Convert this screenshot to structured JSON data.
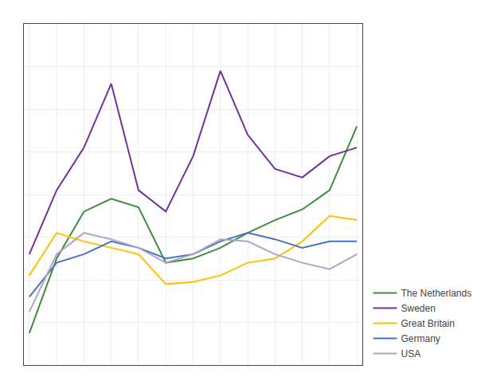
{
  "chart_data": {
    "type": "line",
    "x": [
      0,
      1,
      2,
      3,
      4,
      5,
      6,
      7,
      8,
      9,
      10,
      11,
      12
    ],
    "series": [
      {
        "name": "The Netherlands",
        "color": "#3d8c40",
        "values": [
          1.5,
          5.0,
          7.2,
          7.8,
          7.4,
          4.8,
          5.0,
          5.5,
          6.2,
          6.8,
          7.3,
          8.2,
          11.2
        ]
      },
      {
        "name": "Sweden",
        "color": "#7030a0",
        "values": [
          5.2,
          8.2,
          10.2,
          13.2,
          8.2,
          7.2,
          9.8,
          13.8,
          10.8,
          9.2,
          8.8,
          9.8,
          10.2
        ]
      },
      {
        "name": "Great Britain",
        "color": "#ffc000",
        "values": [
          4.2,
          6.2,
          5.8,
          5.5,
          5.2,
          3.8,
          3.9,
          4.2,
          4.8,
          5.0,
          5.8,
          7.0,
          6.8
        ]
      },
      {
        "name": "Germany",
        "color": "#4472c4",
        "values": [
          3.2,
          4.8,
          5.2,
          5.8,
          5.5,
          5.0,
          5.2,
          5.8,
          6.2,
          5.9,
          5.5,
          5.8,
          5.8
        ]
      },
      {
        "name": "USA",
        "color": "#b3a2c7",
        "values": [
          2.5,
          5.2,
          6.2,
          5.9,
          5.5,
          4.8,
          5.2,
          5.9,
          5.8,
          5.2,
          4.8,
          4.5,
          5.2
        ]
      }
    ],
    "xlim": [
      -0.2,
      12.2
    ],
    "xticks": [
      0,
      1,
      2,
      3,
      4,
      5,
      6,
      7,
      8,
      9,
      10,
      11,
      12
    ],
    "ylim": [
      0,
      16
    ],
    "yticks": [
      0,
      2,
      4,
      6,
      8,
      10,
      12,
      14,
      16
    ],
    "grid": true,
    "tick_labels": false,
    "legend": "lower right"
  }
}
